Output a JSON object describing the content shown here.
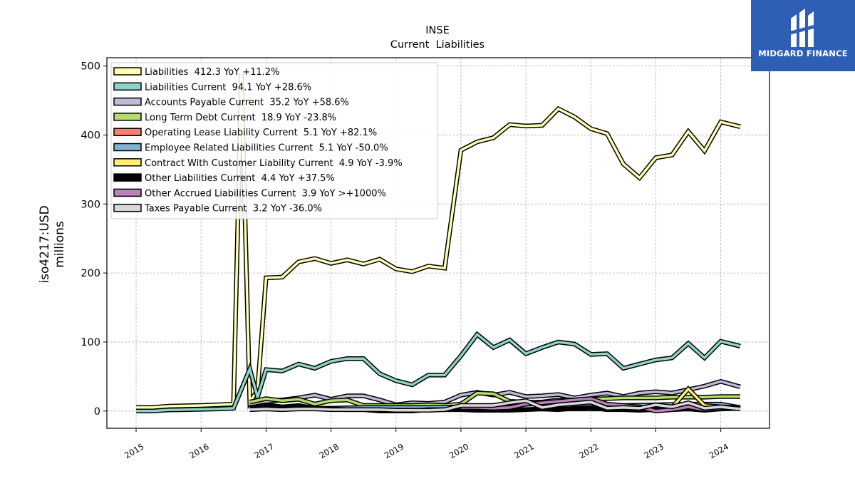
{
  "brand": {
    "name": "MIDGARD FINANCE",
    "bg_color": "#2f5fb4"
  },
  "chart_data": {
    "type": "line",
    "title": "INSE",
    "subtitle": "Current  Liabilities",
    "ylabel": "iso4217:USD",
    "ylabel2": "millions",
    "ylim": [
      -25,
      512
    ],
    "xlim": [
      2014.55,
      2024.75
    ],
    "yticks": [
      0,
      100,
      200,
      300,
      400,
      500
    ],
    "xticks": [
      2015,
      2016,
      2017,
      2018,
      2019,
      2020,
      2021,
      2022,
      2023,
      2024
    ],
    "grid": true,
    "legend_position": "top-left",
    "series": [
      {
        "name": "Liabilities  412.3 YoY +11.2%",
        "color": "#ffffb3",
        "x": [
          2015.0,
          2015.25,
          2015.5,
          2015.75,
          2016.0,
          2016.25,
          2016.5,
          2016.62,
          2016.75,
          2016.87,
          2017.0,
          2017.25,
          2017.5,
          2017.75,
          2018.0,
          2018.25,
          2018.5,
          2018.75,
          2019.0,
          2019.25,
          2019.5,
          2019.75,
          2020.0,
          2020.25,
          2020.5,
          2020.75,
          2021.0,
          2021.25,
          2021.5,
          2021.75,
          2022.0,
          2022.25,
          2022.5,
          2022.75,
          2023.0,
          2023.25,
          2023.5,
          2023.75,
          2024.0,
          2024.3
        ],
        "y": [
          5,
          5,
          7,
          7.5,
          8,
          9,
          10,
          490,
          13,
          30,
          193,
          194,
          216,
          221,
          214,
          219,
          213,
          220,
          206,
          202,
          210,
          207,
          378,
          390,
          396,
          415,
          413,
          414,
          438,
          426,
          409,
          402,
          358,
          338,
          367,
          371,
          405,
          377,
          419,
          412
        ]
      },
      {
        "name": "Liabilities Current  94.1 YoY +28.6%",
        "color": "#8dd3c7",
        "x": [
          2015.0,
          2015.25,
          2015.5,
          2015.75,
          2016.0,
          2016.25,
          2016.5,
          2016.75,
          2016.87,
          2017.0,
          2017.25,
          2017.5,
          2017.75,
          2018.0,
          2018.25,
          2018.5,
          2018.75,
          2019.0,
          2019.25,
          2019.5,
          2019.75,
          2020.0,
          2020.25,
          2020.5,
          2020.75,
          2021.0,
          2021.25,
          2021.5,
          2021.75,
          2022.0,
          2022.25,
          2022.5,
          2022.75,
          2023.0,
          2023.25,
          2023.5,
          2023.75,
          2024.0,
          2024.3
        ],
        "y": [
          0,
          0,
          1.5,
          2,
          2.5,
          3,
          4,
          61,
          20,
          60,
          58,
          68,
          62,
          72,
          76,
          76,
          54,
          44,
          38,
          52,
          52,
          80,
          111,
          92,
          103,
          83,
          92,
          100,
          97,
          82,
          83,
          62,
          68,
          74,
          77,
          98,
          77,
          101,
          94
        ]
      },
      {
        "name": "Accounts Payable Current  35.2 YoY +58.6%",
        "color": "#bebada",
        "x": [
          2016.75,
          2017.0,
          2017.25,
          2017.5,
          2017.75,
          2018.0,
          2018.25,
          2018.5,
          2018.75,
          2019.0,
          2019.25,
          2019.5,
          2019.75,
          2020.0,
          2020.25,
          2020.5,
          2020.75,
          2021.0,
          2021.25,
          2021.5,
          2021.75,
          2022.0,
          2022.25,
          2022.5,
          2022.75,
          2023.0,
          2023.25,
          2023.5,
          2023.75,
          2024.0,
          2024.3
        ],
        "y": [
          10,
          14,
          16,
          19,
          23,
          17,
          22,
          22,
          16,
          9,
          12,
          11,
          13,
          23,
          27,
          23,
          27,
          21,
          22,
          24,
          19,
          23,
          26,
          21,
          26,
          28,
          26,
          31,
          36,
          43,
          35
        ]
      },
      {
        "name": "Long Term Debt Current  18.9 YoY -23.8%",
        "color": "#b3de69",
        "x": [
          2016.75,
          2017.0,
          2017.25,
          2017.5,
          2017.75,
          2018.0,
          2018.25,
          2018.5,
          2018.75,
          2019.0,
          2019.25,
          2019.5,
          2019.75,
          2020.0,
          2020.25,
          2020.5,
          2020.75,
          2021.0,
          2021.25,
          2021.5,
          2021.75,
          2022.0,
          2022.25,
          2022.5,
          2022.75,
          2023.0,
          2023.25,
          2023.5,
          2023.75,
          2024.0,
          2024.3
        ],
        "y": [
          13,
          18,
          15,
          17,
          10,
          15,
          16,
          8,
          8,
          8,
          8,
          9,
          8,
          10,
          26,
          25,
          14,
          13,
          13,
          16,
          16,
          17,
          18,
          19,
          19,
          19,
          20,
          20,
          20,
          21,
          21
        ]
      },
      {
        "name": "Operating Lease Liability Current  5.1 YoY +82.1%",
        "color": "#fb8072",
        "x": [
          2020.0,
          2020.25,
          2020.5,
          2020.75,
          2021.0,
          2021.25,
          2021.5,
          2021.75,
          2022.0,
          2022.25,
          2022.5,
          2022.75,
          2023.0,
          2023.25,
          2023.5,
          2023.75,
          2024.0,
          2024.3
        ],
        "y": [
          6,
          5,
          5,
          4,
          4,
          3,
          3,
          3,
          3,
          3,
          3,
          3,
          3,
          3,
          3,
          3,
          4,
          5
        ]
      },
      {
        "name": "Employee Related Liabilities Current  5.1 YoY -50.0%",
        "color": "#80b1d3",
        "x": [
          2016.75,
          2017.0,
          2017.5,
          2018.0,
          2018.5,
          2019.0,
          2019.5,
          2020.0,
          2020.5,
          2021.0,
          2021.5,
          2022.0,
          2022.5,
          2023.0,
          2023.5,
          2024.0,
          2024.3
        ],
        "y": [
          3,
          4,
          4,
          4,
          5,
          5,
          5,
          6,
          6,
          7,
          8,
          9,
          8,
          9,
          10,
          10,
          5
        ]
      },
      {
        "name": "Contract With Customer Liability Current  4.9 YoY -3.9%",
        "color": "#ffed6f",
        "x": [
          2022.75,
          2023.0,
          2023.25,
          2023.5,
          2023.75,
          2024.0,
          2024.3
        ],
        "y": [
          4,
          5,
          5,
          32,
          8,
          6,
          5
        ]
      },
      {
        "name": "Other Liabilities Current  4.4 YoY +37.5%",
        "color": "#000000",
        "x": [
          2016.75,
          2017.0,
          2017.25,
          2017.5,
          2017.75,
          2018.0,
          2018.25,
          2018.5,
          2018.75,
          2019.0,
          2019.25,
          2019.5,
          2019.75,
          2020.0,
          2020.25,
          2020.5,
          2020.75,
          2021.0,
          2021.25,
          2021.5,
          2021.75,
          2022.0,
          2022.25,
          2022.5,
          2022.75,
          2023.0,
          2023.25,
          2023.5,
          2023.75,
          2024.0,
          2024.3
        ],
        "y": [
          5,
          9,
          6,
          8,
          4,
          3,
          2,
          2,
          0,
          0,
          0,
          2,
          2,
          2,
          1,
          1,
          1,
          2,
          3,
          2,
          4,
          5,
          2,
          2,
          1,
          2,
          2,
          3,
          1,
          3,
          4
        ]
      },
      {
        "name": "Other Accrued Liabilities Current  3.9 YoY >+1000%",
        "color": "#bc80bd",
        "x": [
          2020.0,
          2020.25,
          2020.5,
          2020.75,
          2021.0,
          2021.25,
          2021.5,
          2021.75,
          2022.0,
          2022.25,
          2022.5,
          2022.75,
          2023.0,
          2023.25,
          2023.5,
          2023.75,
          2024.0,
          2024.3
        ],
        "y": [
          5,
          5,
          4,
          5,
          10,
          12,
          14,
          16,
          18,
          10,
          8,
          6,
          0,
          2,
          6,
          2,
          4,
          4
        ]
      },
      {
        "name": "Taxes Payable Current  3.2 YoY -36.0%",
        "color": "#d9d9d9",
        "x": [
          2016.75,
          2017.0,
          2017.25,
          2017.5,
          2017.75,
          2018.0,
          2018.25,
          2018.5,
          2018.75,
          2019.0,
          2019.25,
          2019.5,
          2019.75,
          2020.0,
          2020.25,
          2020.5,
          2020.75,
          2021.0,
          2021.25,
          2021.5,
          2021.75,
          2022.0,
          2022.25,
          2022.5,
          2022.75,
          2023.0,
          2023.25,
          2023.5,
          2023.75,
          2024.0,
          2024.3
        ],
        "y": [
          2,
          3,
          2,
          3,
          3,
          2,
          2,
          2,
          2,
          1,
          1,
          1,
          2,
          8,
          8,
          8,
          12,
          15,
          5,
          9,
          11,
          13,
          4,
          5,
          4,
          9,
          6,
          12,
          4,
          6,
          3
        ]
      }
    ]
  }
}
